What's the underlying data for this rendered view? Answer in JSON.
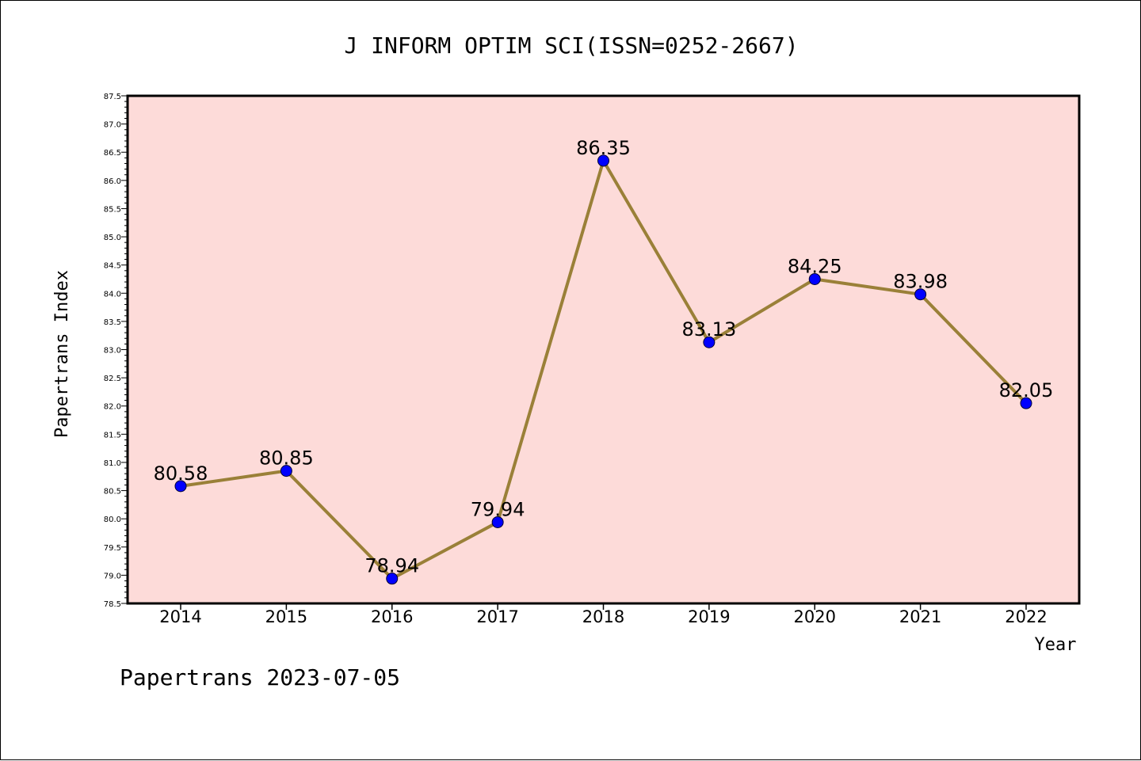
{
  "chart_data": {
    "type": "line",
    "title": "J INFORM OPTIM SCI(ISSN=0252-2667)",
    "xlabel": "Year",
    "ylabel": "Papertrans Index",
    "categories": [
      "2014",
      "2015",
      "2016",
      "2017",
      "2018",
      "2019",
      "2020",
      "2021",
      "2022"
    ],
    "values": [
      80.58,
      80.85,
      78.94,
      79.94,
      86.35,
      83.13,
      84.25,
      83.98,
      82.05
    ],
    "data_labels": [
      "80.58",
      "80.85",
      "78.94",
      "79.94",
      "86.35",
      "83.13",
      "84.25",
      "83.98",
      "82.05"
    ],
    "ylim": [
      78.5,
      87.5
    ],
    "yticks": [
      "78.5",
      "79.0",
      "79.5",
      "80.0",
      "80.5",
      "81.0",
      "81.5",
      "82.0",
      "82.5",
      "83.0",
      "83.5",
      "84.0",
      "84.5",
      "85.0",
      "85.5",
      "86.0",
      "86.5",
      "87.0",
      "87.5"
    ],
    "grid": false,
    "colors": {
      "plot_background": "#FDDBD9",
      "line": "#9A8038",
      "marker": "#0000FF",
      "axes": "#000000"
    }
  },
  "footer": "Papertrans 2023-07-05"
}
